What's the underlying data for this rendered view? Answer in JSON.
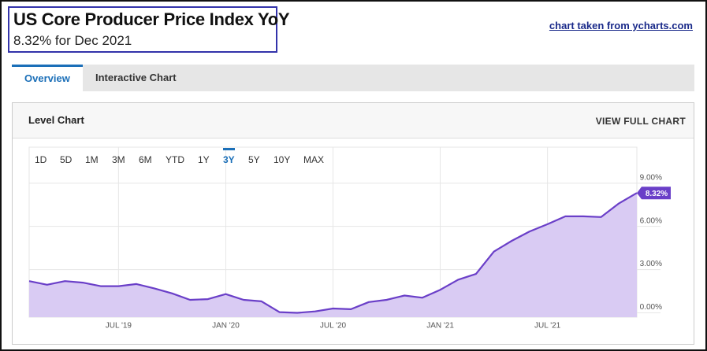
{
  "header": {
    "title": "US Core Producer Price Index YoY",
    "subtitle": "8.32% for Dec 2021",
    "link": "chart taken from ycharts.com"
  },
  "tabs": {
    "items": [
      "Overview",
      "Interactive Chart"
    ],
    "active": 0
  },
  "panel": {
    "title": "Level Chart",
    "action": "VIEW FULL CHART"
  },
  "ranges": {
    "items": [
      "1D",
      "5D",
      "1M",
      "3M",
      "6M",
      "YTD",
      "1Y",
      "3Y",
      "5Y",
      "10Y",
      "MAX"
    ],
    "active": 7
  },
  "chart_data": {
    "type": "area",
    "color": "#6a3fc8",
    "fill": "#d9cbf3",
    "x": [
      "2019-02",
      "2019-03",
      "2019-04",
      "2019-05",
      "2019-06",
      "2019-07",
      "2019-08",
      "2019-09",
      "2019-10",
      "2019-11",
      "2019-12",
      "2020-01",
      "2020-02",
      "2020-03",
      "2020-04",
      "2020-05",
      "2020-06",
      "2020-07",
      "2020-08",
      "2020-09",
      "2020-10",
      "2020-11",
      "2020-12",
      "2021-01",
      "2021-02",
      "2021-03",
      "2021-04",
      "2021-05",
      "2021-06",
      "2021-07",
      "2021-08",
      "2021-09",
      "2021-10",
      "2021-11",
      "2021-12"
    ],
    "values": [
      2.2,
      1.95,
      2.2,
      2.1,
      1.85,
      1.85,
      2.0,
      1.7,
      1.35,
      0.9,
      0.95,
      1.3,
      0.9,
      0.8,
      0.05,
      0.0,
      0.1,
      0.3,
      0.25,
      0.75,
      0.9,
      1.2,
      1.05,
      1.6,
      2.3,
      2.7,
      4.25,
      5.0,
      5.65,
      6.15,
      6.7,
      6.7,
      6.65,
      7.6,
      8.32
    ],
    "value_labels": [
      null,
      null,
      null,
      null,
      null,
      null,
      null,
      null,
      null,
      null,
      null,
      null,
      null,
      null,
      null,
      null,
      null,
      null,
      null,
      null,
      null,
      null,
      null,
      null,
      null,
      null,
      null,
      null,
      null,
      null,
      null,
      null,
      null,
      null,
      "8.32%"
    ],
    "xlim": [
      "2019-02",
      "2021-12"
    ],
    "xticks": [
      {
        "value": "2019-07",
        "label": "JUL '19"
      },
      {
        "value": "2020-01",
        "label": "JAN '20"
      },
      {
        "value": "2020-07",
        "label": "JUL '20"
      },
      {
        "value": "2021-01",
        "label": "JAN '21"
      },
      {
        "value": "2021-07",
        "label": "JUL '21"
      }
    ],
    "ylim": [
      -0.3,
      11.5
    ],
    "yticks": [
      {
        "value": 0,
        "label": "0.00%"
      },
      {
        "value": 3,
        "label": "3.00%"
      },
      {
        "value": 6,
        "label": "6.00%"
      },
      {
        "value": 9,
        "label": "9.00%"
      }
    ],
    "grid": true
  }
}
